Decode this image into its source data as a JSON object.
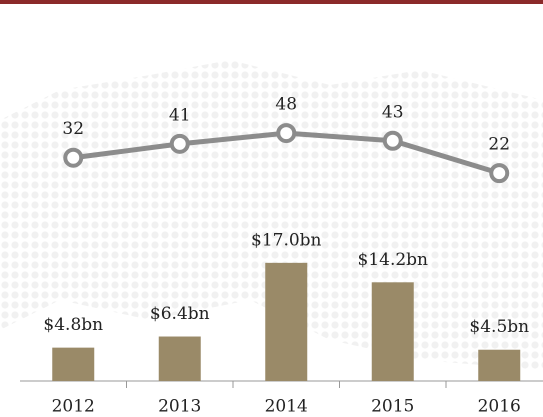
{
  "chart_data": [
    {
      "type": "line",
      "values": [
        32,
        41,
        48,
        43,
        22
      ],
      "color": "#8c8c8c",
      "ylim": [
        0,
        100
      ]
    },
    {
      "type": "bar",
      "categories": [
        "2012",
        "2013",
        "2014",
        "2015",
        "2016"
      ],
      "values": [
        4.8,
        6.4,
        17.0,
        14.2,
        4.5
      ],
      "value_labels": [
        "$4.8bn",
        "$6.4bn",
        "$17.0bn",
        "$14.2bn",
        "$4.5bn"
      ],
      "color": "#9a8a68",
      "ylim": [
        0,
        20
      ]
    }
  ]
}
